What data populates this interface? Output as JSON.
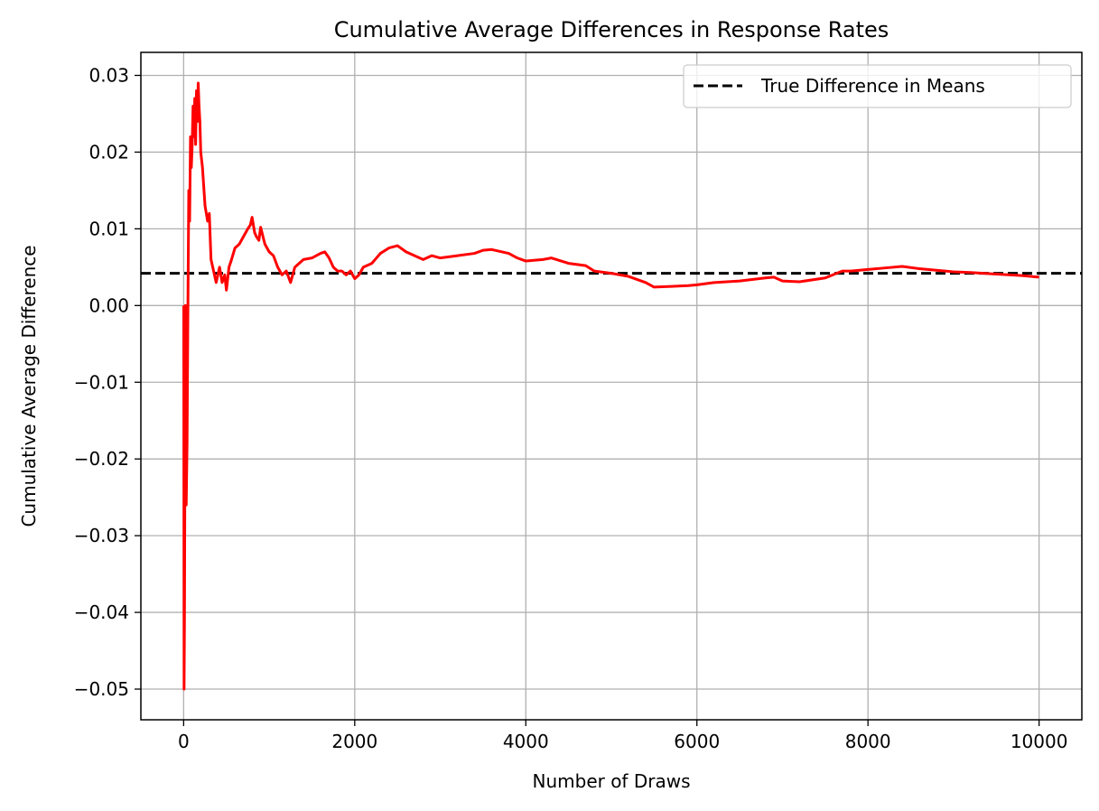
{
  "chart_data": {
    "type": "line",
    "title": "Cumulative Average Differences in Response Rates",
    "xlabel": "Number of Draws",
    "ylabel": "Cumulative Average Difference",
    "xlim": [
      -500,
      10500
    ],
    "ylim": [
      -0.054,
      0.033
    ],
    "xticks": [
      0,
      2000,
      4000,
      6000,
      8000,
      10000
    ],
    "xtick_labels": [
      "0",
      "2000",
      "4000",
      "6000",
      "8000",
      "10000"
    ],
    "yticks": [
      -0.05,
      -0.04,
      -0.03,
      -0.02,
      -0.01,
      0.0,
      0.01,
      0.02,
      0.03
    ],
    "ytick_labels": [
      "−0.05",
      "−0.04",
      "−0.03",
      "−0.02",
      "−0.01",
      "0.00",
      "0.01",
      "0.02",
      "0.03"
    ],
    "grid": true,
    "legend_position": "top-right",
    "reference_line": {
      "name": "True Difference in Means",
      "y": 0.0042,
      "color": "#000000",
      "style": "dashed"
    },
    "series": [
      {
        "color": "#ff0000",
        "x": [
          1,
          5,
          10,
          15,
          20,
          25,
          30,
          40,
          50,
          60,
          70,
          80,
          90,
          100,
          110,
          120,
          130,
          140,
          150,
          160,
          170,
          180,
          190,
          200,
          220,
          250,
          280,
          300,
          320,
          340,
          360,
          380,
          400,
          420,
          450,
          480,
          500,
          530,
          560,
          600,
          650,
          700,
          750,
          780,
          800,
          830,
          850,
          880,
          900,
          950,
          1000,
          1050,
          1100,
          1150,
          1200,
          1250,
          1300,
          1400,
          1500,
          1600,
          1650,
          1700,
          1750,
          1800,
          1850,
          1900,
          1950,
          2000,
          2050,
          2100,
          2200,
          2300,
          2400,
          2500,
          2600,
          2700,
          2800,
          2900,
          3000,
          3200,
          3400,
          3500,
          3600,
          3800,
          3900,
          4000,
          4200,
          4300,
          4500,
          4700,
          4800,
          5000,
          5200,
          5400,
          5500,
          5700,
          5900,
          6000,
          6200,
          6500,
          6800,
          6900,
          7000,
          7200,
          7500,
          7700,
          7800,
          8000,
          8200,
          8400,
          8600,
          8800,
          9000,
          9200,
          9500,
          9800,
          10000
        ],
        "y": [
          0.0,
          -0.05,
          -0.04,
          -0.02,
          0.0,
          -0.015,
          -0.026,
          -0.018,
          0.0,
          0.015,
          0.011,
          0.022,
          0.018,
          0.021,
          0.026,
          0.022,
          0.027,
          0.021,
          0.028,
          0.024,
          0.029,
          0.026,
          0.024,
          0.02,
          0.018,
          0.013,
          0.011,
          0.012,
          0.006,
          0.005,
          0.004,
          0.003,
          0.004,
          0.005,
          0.003,
          0.004,
          0.002,
          0.005,
          0.006,
          0.0075,
          0.008,
          0.009,
          0.01,
          0.0105,
          0.0115,
          0.0095,
          0.009,
          0.0085,
          0.0102,
          0.008,
          0.007,
          0.0065,
          0.005,
          0.004,
          0.0045,
          0.003,
          0.005,
          0.006,
          0.0062,
          0.0068,
          0.007,
          0.0062,
          0.005,
          0.0045,
          0.0045,
          0.004,
          0.0045,
          0.0035,
          0.004,
          0.005,
          0.0055,
          0.0068,
          0.0075,
          0.0078,
          0.007,
          0.0065,
          0.006,
          0.0065,
          0.0062,
          0.0065,
          0.0068,
          0.0072,
          0.0073,
          0.0068,
          0.0062,
          0.0058,
          0.006,
          0.0062,
          0.0055,
          0.0052,
          0.0045,
          0.0042,
          0.0038,
          0.003,
          0.0024,
          0.0025,
          0.0026,
          0.0027,
          0.003,
          0.0032,
          0.0036,
          0.0037,
          0.0032,
          0.0031,
          0.0036,
          0.0045,
          0.0045,
          0.0047,
          0.0049,
          0.0051,
          0.0048,
          0.0046,
          0.0044,
          0.0043,
          0.0041,
          0.0039,
          0.0037
        ]
      }
    ]
  }
}
